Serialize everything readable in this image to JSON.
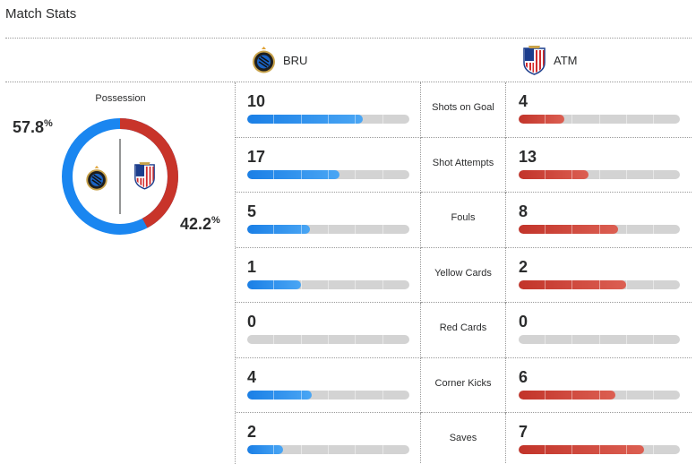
{
  "page_title": "Match Stats",
  "teams": {
    "home": {
      "abbr": "BRU",
      "logo": "club-brugge-crest-icon",
      "color": "#1a7fe6"
    },
    "away": {
      "abbr": "ATM",
      "logo": "atletico-madrid-crest-icon",
      "color": "#c2342a"
    }
  },
  "possession": {
    "label": "Possession",
    "home_value": "57.8",
    "away_value": "42.2",
    "unit": "%"
  },
  "stats": [
    {
      "label": "Shots on Goal",
      "home": 10,
      "away": 4
    },
    {
      "label": "Shot Attempts",
      "home": 17,
      "away": 13
    },
    {
      "label": "Fouls",
      "home": 5,
      "away": 8
    },
    {
      "label": "Yellow Cards",
      "home": 1,
      "away": 2
    },
    {
      "label": "Red Cards",
      "home": 0,
      "away": 0
    },
    {
      "label": "Corner Kicks",
      "home": 4,
      "away": 6
    },
    {
      "label": "Saves",
      "home": 2,
      "away": 7
    }
  ]
}
